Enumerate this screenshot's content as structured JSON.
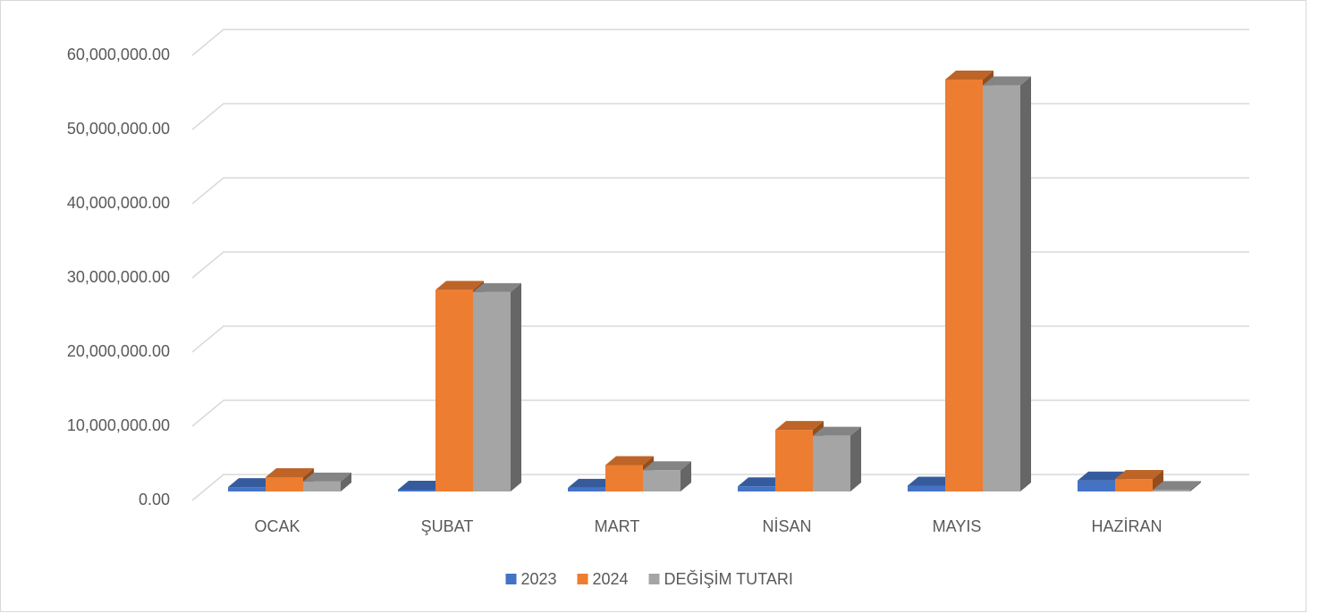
{
  "chart_data": {
    "type": "bar3d",
    "categories": [
      "OCAK",
      "ŞUBAT",
      "MART",
      "NİSAN",
      "MAYIS",
      "HAZİRAN"
    ],
    "series": [
      {
        "name": "2023",
        "color": "#4472c4",
        "values": [
          600000,
          250000,
          500000,
          700000,
          800000,
          1500000
        ]
      },
      {
        "name": "2024",
        "color": "#ed7d31",
        "values": [
          1950000,
          27500000,
          3600000,
          8400000,
          56200000,
          1700000
        ]
      },
      {
        "name": "DEĞİŞİM TUTARI",
        "color": "#a5a5a5",
        "values": [
          1350000,
          27200000,
          2900000,
          7600000,
          55400000,
          200000
        ]
      }
    ],
    "ylim": [
      0,
      60000000
    ],
    "yticks": [
      {
        "value": 0,
        "label": "0.00"
      },
      {
        "value": 10000000,
        "label": "10,000,000.00"
      },
      {
        "value": 20000000,
        "label": "20,000,000.00"
      },
      {
        "value": 30000000,
        "label": "30,000,000.00"
      },
      {
        "value": 40000000,
        "label": "40,000,000.00"
      },
      {
        "value": 50000000,
        "label": "50,000,000.00"
      },
      {
        "value": 60000000,
        "label": "60,000,000.00"
      }
    ],
    "grid": true,
    "legend": "bottom"
  }
}
